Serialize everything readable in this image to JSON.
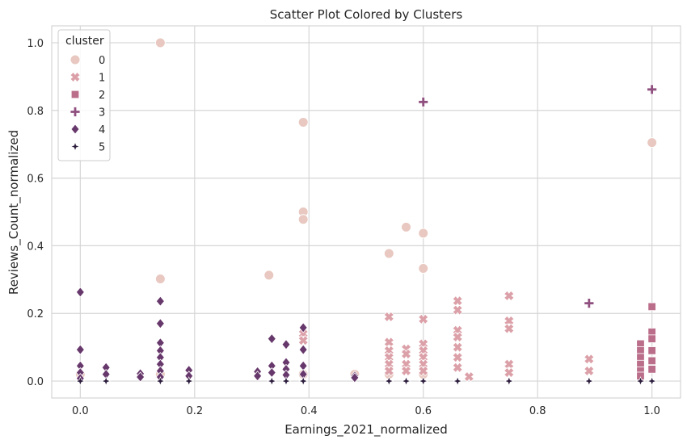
{
  "chart_data": {
    "type": "scatter",
    "title": "Scatter Plot Colored by Clusters",
    "xlabel": "Earnings_2021_normalized",
    "ylabel": "Reviews_Count_normalized",
    "xlim": [
      -0.05,
      1.05
    ],
    "ylim": [
      -0.05,
      1.05
    ],
    "xticks": [
      "0.0",
      "0.2",
      "0.4",
      "0.6",
      "0.8",
      "1.0"
    ],
    "xtick_values": [
      0,
      0.2,
      0.4,
      0.6,
      0.8,
      1.0
    ],
    "yticks": [
      "0.0",
      "0.2",
      "0.4",
      "0.6",
      "0.8",
      "1.0"
    ],
    "ytick_values": [
      0,
      0.2,
      0.4,
      0.6,
      0.8,
      1.0
    ],
    "grid": true,
    "legend_title": "cluster",
    "legend_position": "top-left",
    "series": [
      {
        "name": "0",
        "marker": "circle",
        "color": "#e8c8c0",
        "points": [
          [
            0.14,
            1.0
          ],
          [
            0.39,
            0.765
          ],
          [
            0.39,
            0.5
          ],
          [
            0.39,
            0.478
          ],
          [
            0.57,
            0.455
          ],
          [
            0.6,
            0.437
          ],
          [
            0.54,
            0.377
          ],
          [
            0.6,
            0.333
          ],
          [
            0.33,
            0.313
          ],
          [
            0.14,
            0.302
          ],
          [
            1.0,
            0.705
          ],
          [
            0.0,
            0.02
          ],
          [
            0.14,
            0.02
          ],
          [
            0.39,
            0.02
          ],
          [
            0.48,
            0.02
          ],
          [
            0.54,
            0.02
          ],
          [
            0.6,
            0.02
          ]
        ]
      },
      {
        "name": "1",
        "marker": "x",
        "color": "#dba0a8",
        "points": [
          [
            0.39,
            0.14
          ],
          [
            0.39,
            0.12
          ],
          [
            0.54,
            0.19
          ],
          [
            0.54,
            0.115
          ],
          [
            0.54,
            0.09
          ],
          [
            0.54,
            0.07
          ],
          [
            0.54,
            0.05
          ],
          [
            0.54,
            0.03
          ],
          [
            0.57,
            0.095
          ],
          [
            0.57,
            0.08
          ],
          [
            0.57,
            0.05
          ],
          [
            0.57,
            0.03
          ],
          [
            0.6,
            0.183
          ],
          [
            0.6,
            0.11
          ],
          [
            0.6,
            0.09
          ],
          [
            0.6,
            0.07
          ],
          [
            0.6,
            0.05
          ],
          [
            0.6,
            0.03
          ],
          [
            0.66,
            0.237
          ],
          [
            0.66,
            0.21
          ],
          [
            0.66,
            0.15
          ],
          [
            0.66,
            0.13
          ],
          [
            0.66,
            0.1
          ],
          [
            0.66,
            0.07
          ],
          [
            0.66,
            0.04
          ],
          [
            0.68,
            0.013
          ],
          [
            0.75,
            0.252
          ],
          [
            0.75,
            0.178
          ],
          [
            0.75,
            0.155
          ],
          [
            0.75,
            0.05
          ],
          [
            0.75,
            0.025
          ],
          [
            0.89,
            0.065
          ],
          [
            0.89,
            0.03
          ]
        ]
      },
      {
        "name": "2",
        "marker": "square",
        "color": "#bb6e8a",
        "points": [
          [
            1.0,
            0.22
          ],
          [
            1.0,
            0.145
          ],
          [
            1.0,
            0.125
          ],
          [
            1.0,
            0.09
          ],
          [
            1.0,
            0.06
          ],
          [
            1.0,
            0.035
          ],
          [
            0.98,
            0.11
          ],
          [
            0.98,
            0.09
          ],
          [
            0.98,
            0.07
          ],
          [
            0.98,
            0.05
          ],
          [
            0.98,
            0.03
          ],
          [
            0.98,
            0.015
          ]
        ]
      },
      {
        "name": "3",
        "marker": "plus",
        "color": "#8f4f7f",
        "points": [
          [
            0.6,
            0.825
          ],
          [
            1.0,
            0.862
          ],
          [
            0.89,
            0.23
          ]
        ]
      },
      {
        "name": "4",
        "marker": "diamond",
        "color": "#67386b",
        "points": [
          [
            0.0,
            0.263
          ],
          [
            0.0,
            0.093
          ],
          [
            0.0,
            0.045
          ],
          [
            0.0,
            0.025
          ],
          [
            0.0,
            0.008
          ],
          [
            0.045,
            0.04
          ],
          [
            0.045,
            0.02
          ],
          [
            0.105,
            0.022
          ],
          [
            0.105,
            0.012
          ],
          [
            0.14,
            0.236
          ],
          [
            0.14,
            0.17
          ],
          [
            0.14,
            0.113
          ],
          [
            0.14,
            0.09
          ],
          [
            0.14,
            0.07
          ],
          [
            0.14,
            0.05
          ],
          [
            0.14,
            0.03
          ],
          [
            0.14,
            0.012
          ],
          [
            0.19,
            0.032
          ],
          [
            0.19,
            0.015
          ],
          [
            0.31,
            0.028
          ],
          [
            0.31,
            0.015
          ],
          [
            0.335,
            0.125
          ],
          [
            0.335,
            0.045
          ],
          [
            0.335,
            0.025
          ],
          [
            0.36,
            0.108
          ],
          [
            0.36,
            0.055
          ],
          [
            0.36,
            0.035
          ],
          [
            0.36,
            0.018
          ],
          [
            0.39,
            0.158
          ],
          [
            0.39,
            0.093
          ],
          [
            0.39,
            0.045
          ],
          [
            0.39,
            0.02
          ],
          [
            0.48,
            0.015
          ],
          [
            0.48,
            0.01
          ]
        ]
      },
      {
        "name": "5",
        "marker": "star",
        "color": "#2d1e3e",
        "points": [
          [
            0.0,
            0.0
          ],
          [
            0.045,
            0.0
          ],
          [
            0.14,
            0.0
          ],
          [
            0.19,
            0.0
          ],
          [
            0.335,
            0.0
          ],
          [
            0.36,
            0.0
          ],
          [
            0.39,
            0.0
          ],
          [
            0.54,
            0.0
          ],
          [
            0.57,
            0.0
          ],
          [
            0.6,
            0.0
          ],
          [
            0.66,
            0.0
          ],
          [
            0.75,
            0.0
          ],
          [
            0.89,
            0.0
          ],
          [
            0.98,
            0.0
          ],
          [
            1.0,
            0.0
          ]
        ]
      }
    ]
  }
}
